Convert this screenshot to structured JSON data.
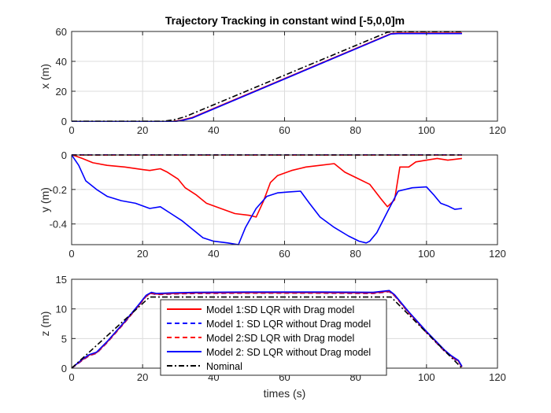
{
  "figure": {
    "title": "Trajectory Tracking in constant wind [-5,0,0]m"
  },
  "colors": {
    "red": "#ff0000",
    "blue": "#0000ff",
    "black": "#000000",
    "grid": "#dcdcdc",
    "axis": "#262626"
  },
  "legend": {
    "placement": "inside-bottom-center of third subplot",
    "entries": [
      {
        "label": "Model 1:SD LQR with Drag model",
        "color": "#ff0000",
        "style": "solid"
      },
      {
        "label": "Model 1: SD LQR without Drag model",
        "color": "#0000ff",
        "style": "dashed"
      },
      {
        "label": "Model 2:SD LQR with Drag model",
        "color": "#ff0000",
        "style": "dashed"
      },
      {
        "label": "Model 2: SD LQR without Drag model",
        "color": "#0000ff",
        "style": "solid"
      },
      {
        "label": "Nominal",
        "color": "#000000",
        "style": "dashdot"
      }
    ]
  },
  "chart_data": [
    {
      "type": "line",
      "title": "Trajectory Tracking in constant wind [-5,0,0]m",
      "xlabel": "",
      "ylabel": "x (m)",
      "xlim": [
        0,
        120
      ],
      "ylim": [
        0,
        60
      ],
      "xticks": [
        0,
        20,
        40,
        60,
        80,
        100,
        120
      ],
      "yticks": [
        0,
        20,
        40,
        60
      ],
      "grid": true,
      "series": [
        {
          "color": "#ff0000",
          "style": "solid",
          "x": [
            0,
            28,
            31,
            34,
            90,
            92,
            110
          ],
          "y": [
            -0.3,
            -0.3,
            0.7,
            2.4,
            58.6,
            58.9,
            58.9
          ]
        },
        {
          "color": "#0000ff",
          "style": "dashed",
          "x": [
            0,
            28,
            31,
            34,
            90,
            92,
            110
          ],
          "y": [
            -0.5,
            -0.5,
            0.5,
            2.2,
            58.4,
            58.7,
            58.7
          ]
        },
        {
          "color": "#ff0000",
          "style": "dashed",
          "x": [
            0,
            28,
            31,
            34,
            90,
            92,
            110
          ],
          "y": [
            -0.4,
            -0.4,
            0.6,
            2.3,
            58.5,
            58.8,
            58.8
          ]
        },
        {
          "color": "#0000ff",
          "style": "solid",
          "x": [
            0,
            28,
            31,
            34,
            90,
            92,
            110
          ],
          "y": [
            -0.6,
            -0.6,
            0.4,
            2.1,
            58.3,
            58.6,
            58.6
          ]
        },
        {
          "color": "#000000",
          "style": "dashdot",
          "x": [
            0,
            26,
            29,
            32,
            89,
            91,
            110
          ],
          "y": [
            0,
            0,
            1.0,
            3.0,
            59.5,
            59.9,
            59.9
          ]
        }
      ]
    },
    {
      "type": "line",
      "title": "",
      "xlabel": "",
      "ylabel": "y (m)",
      "xlim": [
        0,
        120
      ],
      "ylim": [
        -0.52,
        0
      ],
      "xticks": [
        0,
        20,
        40,
        60,
        80,
        100,
        120
      ],
      "yticks": [
        0,
        -0.2,
        -0.4
      ],
      "grid": true,
      "series": [
        {
          "color": "#ff0000",
          "style": "solid",
          "x": [
            0,
            1,
            3,
            6,
            10,
            15,
            20,
            22,
            25,
            27,
            30,
            32,
            35,
            38,
            42,
            46,
            50,
            52,
            54,
            56,
            58,
            62,
            66,
            70,
            74,
            77,
            80,
            84,
            87,
            89,
            91,
            92.5,
            95,
            97,
            100,
            103,
            106,
            110
          ],
          "y": [
            0,
            -0.005,
            -0.02,
            -0.045,
            -0.06,
            -0.07,
            -0.085,
            -0.09,
            -0.08,
            -0.1,
            -0.14,
            -0.19,
            -0.23,
            -0.28,
            -0.31,
            -0.34,
            -0.35,
            -0.36,
            -0.27,
            -0.16,
            -0.12,
            -0.09,
            -0.07,
            -0.06,
            -0.05,
            -0.1,
            -0.13,
            -0.17,
            -0.25,
            -0.3,
            -0.26,
            -0.07,
            -0.07,
            -0.04,
            -0.03,
            -0.02,
            -0.03,
            -0.02
          ]
        },
        {
          "color": "#0000ff",
          "style": "dashed",
          "x": [
            0,
            110
          ],
          "y": [
            0.001,
            0.001
          ]
        },
        {
          "color": "#ff0000",
          "style": "dashed",
          "x": [
            0,
            110
          ],
          "y": [
            -0.001,
            -0.001
          ]
        },
        {
          "color": "#0000ff",
          "style": "solid",
          "x": [
            0,
            2,
            4,
            7,
            10,
            14,
            18,
            22,
            25,
            28,
            31,
            34,
            37,
            40,
            44,
            47,
            49,
            52,
            55,
            58,
            61,
            64.5,
            67,
            70,
            74,
            78,
            81,
            83,
            84,
            86,
            89,
            92,
            96,
            100,
            102,
            104,
            106,
            108,
            110
          ],
          "y": [
            0,
            -0.06,
            -0.15,
            -0.2,
            -0.24,
            -0.265,
            -0.28,
            -0.31,
            -0.3,
            -0.34,
            -0.38,
            -0.43,
            -0.48,
            -0.5,
            -0.51,
            -0.52,
            -0.42,
            -0.31,
            -0.24,
            -0.22,
            -0.215,
            -0.21,
            -0.28,
            -0.36,
            -0.42,
            -0.47,
            -0.5,
            -0.51,
            -0.5,
            -0.45,
            -0.33,
            -0.21,
            -0.19,
            -0.185,
            -0.23,
            -0.28,
            -0.295,
            -0.315,
            -0.31
          ]
        },
        {
          "color": "#000000",
          "style": "dashdot",
          "x": [
            0,
            110
          ],
          "y": [
            0,
            0
          ]
        }
      ]
    },
    {
      "type": "line",
      "title": "",
      "xlabel": "times (s)",
      "ylabel": "z (m)",
      "xlim": [
        0,
        120
      ],
      "ylim": [
        0,
        15
      ],
      "xticks": [
        0,
        20,
        40,
        60,
        80,
        100,
        120
      ],
      "yticks": [
        0,
        5,
        10,
        15
      ],
      "grid": true,
      "series": [
        {
          "color": "#ff0000",
          "style": "solid",
          "x": [
            0,
            1,
            3,
            5,
            7,
            10,
            15,
            19,
            21,
            22.5,
            24,
            28,
            35,
            50,
            70,
            85,
            88,
            89.5,
            91,
            95,
            100,
            105,
            107,
            109,
            110
          ],
          "y": [
            0,
            0.5,
            1.4,
            2.2,
            2.6,
            4.4,
            7.8,
            10.7,
            12.2,
            12.7,
            12.5,
            12.6,
            12.7,
            12.75,
            12.75,
            12.7,
            12.9,
            13.0,
            12.3,
            9.4,
            6.1,
            3.0,
            2.0,
            1.2,
            0.2
          ]
        },
        {
          "color": "#0000ff",
          "style": "dashed",
          "x": [
            0,
            1,
            3,
            5,
            7,
            10,
            15,
            19,
            21,
            22.5,
            24,
            28,
            35,
            50,
            70,
            85,
            88,
            89.5,
            91,
            95,
            100,
            105,
            107,
            109,
            110
          ],
          "y": [
            0,
            0.4,
            1.3,
            2.1,
            2.5,
            4.3,
            7.7,
            10.6,
            12.1,
            12.6,
            12.4,
            12.5,
            12.6,
            12.65,
            12.65,
            12.6,
            12.8,
            12.9,
            12.2,
            9.3,
            6.0,
            2.9,
            1.9,
            1.1,
            0.2
          ]
        },
        {
          "color": "#ff0000",
          "style": "dashed",
          "x": [
            0,
            1,
            3,
            5,
            7,
            10,
            15,
            19,
            21,
            22.5,
            24,
            28,
            35,
            50,
            70,
            85,
            88,
            89.5,
            91,
            95,
            100,
            105,
            107,
            109,
            110
          ],
          "y": [
            0,
            0.45,
            1.35,
            2.15,
            2.55,
            4.35,
            7.75,
            10.65,
            12.15,
            12.65,
            12.45,
            12.55,
            12.65,
            12.7,
            12.7,
            12.65,
            12.85,
            12.95,
            12.25,
            9.35,
            6.05,
            2.95,
            1.95,
            1.15,
            0.2
          ]
        },
        {
          "color": "#0000ff",
          "style": "solid",
          "x": [
            0,
            1,
            3,
            5,
            7,
            10,
            15,
            19,
            21,
            22.5,
            24,
            28,
            35,
            50,
            70,
            85,
            88,
            89.5,
            91,
            95,
            100,
            105,
            107,
            109,
            110
          ],
          "y": [
            0,
            0.5,
            1.5,
            2.3,
            2.7,
            4.5,
            7.9,
            10.8,
            12.3,
            12.8,
            12.6,
            12.7,
            12.8,
            12.85,
            12.85,
            12.8,
            13.0,
            13.1,
            12.4,
            9.5,
            6.2,
            3.1,
            2.1,
            1.3,
            0.3
          ]
        },
        {
          "color": "#000000",
          "style": "dashdot",
          "x": [
            0,
            22,
            26,
            88,
            90,
            110
          ],
          "y": [
            0,
            12.0,
            12.0,
            12.0,
            12.0,
            0
          ]
        }
      ]
    }
  ]
}
